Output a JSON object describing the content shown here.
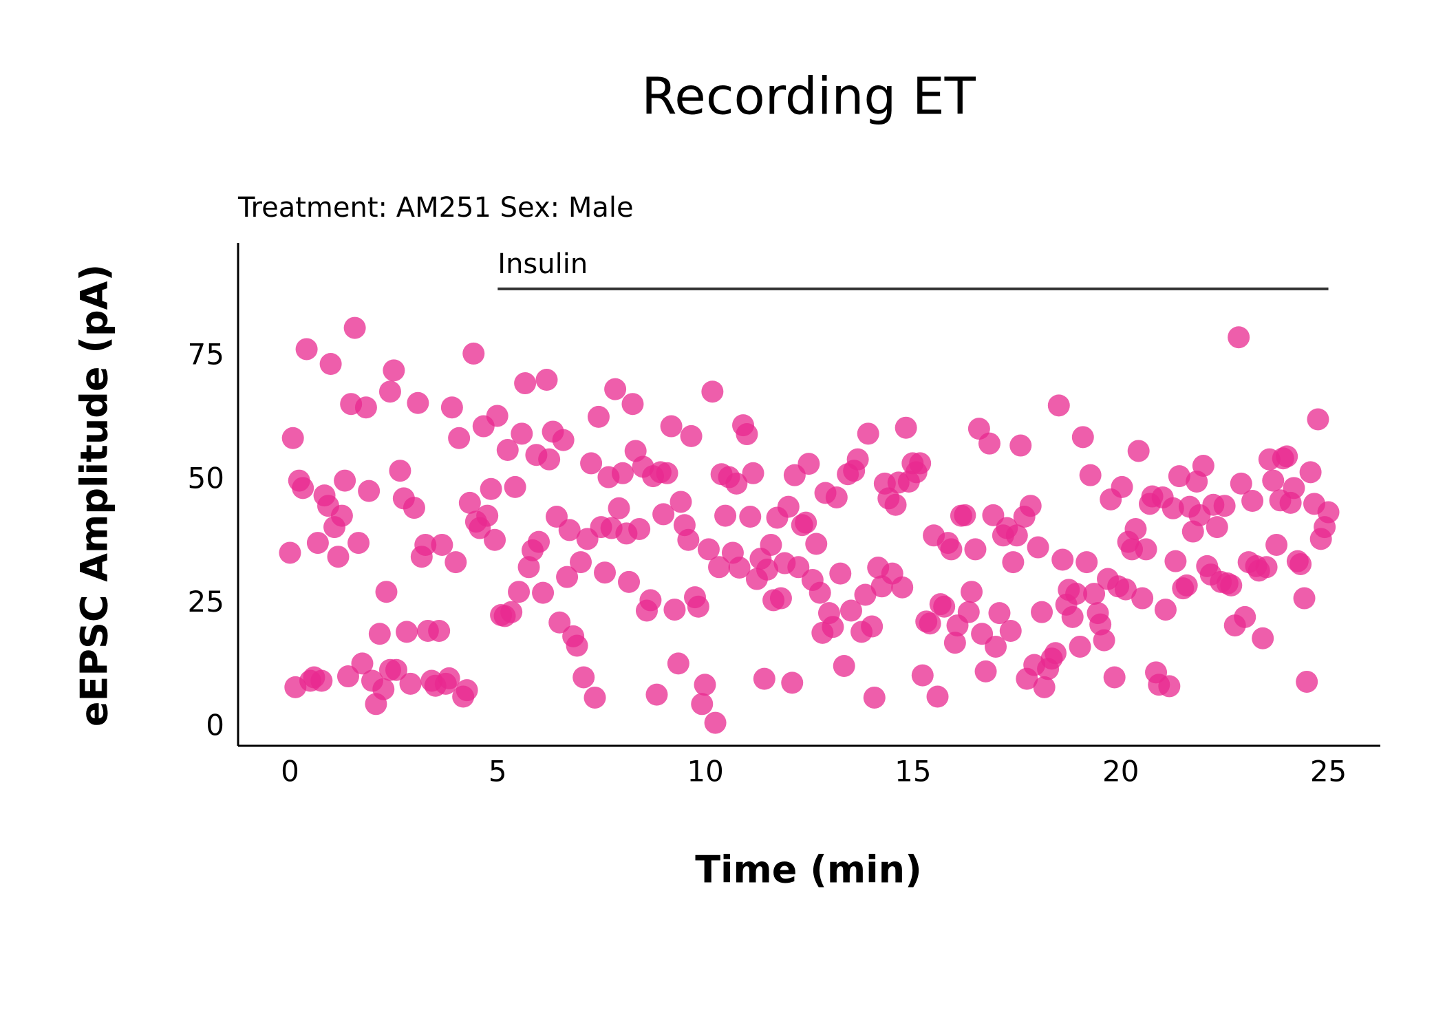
{
  "chart_data": {
    "type": "scatter",
    "title": "Recording ET",
    "subtitle": "Treatment: AM251  Sex: Male",
    "x_label": "Time (min)",
    "y_label": "eEPSC Amplitude (pA)",
    "xlim": [
      -1.25,
      26.25
    ],
    "ylim": [
      -3.75,
      98
    ],
    "xticks": [
      0,
      5,
      10,
      15,
      20,
      25
    ],
    "yticks": [
      0,
      25,
      50,
      75
    ],
    "grid": false,
    "annotations": [
      {
        "text": "Insulin",
        "x": [
          5,
          25
        ],
        "y": 88.7
      }
    ],
    "x": [
      0,
      0.07,
      0.13,
      0.22,
      0.31,
      0.4,
      0.49,
      0.58,
      0.67,
      0.76,
      0.83,
      0.92,
      0.98,
      1.07,
      1.16,
      1.25,
      1.32,
      1.4,
      1.47,
      1.56,
      1.65,
      1.74,
      1.83,
      1.9,
      1.98,
      2.07,
      2.16,
      2.25,
      2.32,
      2.41,
      2.5,
      2.56,
      2.41,
      2.65,
      2.74,
      2.81,
      2.9,
      2.99,
      3.08,
      3.17,
      3.26,
      3.32,
      3.41,
      3.5,
      3.59,
      3.66,
      3.75,
      3.83,
      3.9,
      3.99,
      4.07,
      4.17,
      4.26,
      4.33,
      4.42,
      4.48,
      4.57,
      4.66,
      4.75,
      4.84,
      4.93,
      4.99,
      5.08,
      5.17,
      5.24,
      5.33,
      5.42,
      5.51,
      5.58,
      5.66,
      5.75,
      5.84,
      5.93,
      5.99,
      6.09,
      6.18,
      6.24,
      6.33,
      6.42,
      6.49,
      6.58,
      6.67,
      6.73,
      6.82,
      6.91,
      7,
      7.07,
      7.16,
      7.25,
      7.34,
      7.43,
      7.49,
      7.58,
      7.67,
      7.74,
      7.83,
      7.92,
      8.01,
      8.1,
      8.16,
      8.25,
      8.32,
      8.41,
      8.5,
      8.59,
      8.68,
      8.74,
      8.83,
      8.92,
      8.99,
      9.08,
      9.18,
      9.26,
      9.35,
      9.41,
      9.5,
      9.59,
      9.66,
      9.75,
      9.83,
      9.92,
      9.99,
      10.08,
      10.17,
      10.24,
      10.33,
      10.39,
      10.48,
      10.57,
      10.66,
      10.75,
      10.82,
      10.91,
      11,
      11.08,
      11.15,
      11.24,
      11.33,
      11.42,
      11.49,
      11.58,
      11.64,
      11.73,
      11.82,
      11.91,
      12,
      12.09,
      12.15,
      12.24,
      12.33,
      12.42,
      12.49,
      12.58,
      12.67,
      12.76,
      12.82,
      12.89,
      12.98,
      13.07,
      13.16,
      13.25,
      13.34,
      13.43,
      13.51,
      13.58,
      13.67,
      13.76,
      13.85,
      13.92,
      14.01,
      14.07,
      14.16,
      14.25,
      14.32,
      14.41,
      14.5,
      14.58,
      14.65,
      14.74,
      14.83,
      14.9,
      14.99,
      15.08,
      15.17,
      15.23,
      15.32,
      15.41,
      15.5,
      15.59,
      15.66,
      15.75,
      15.84,
      15.92,
      16.01,
      16.07,
      16.16,
      16.25,
      16.34,
      16.41,
      16.5,
      16.59,
      16.66,
      16.75,
      16.84,
      16.93,
      16.99,
      17.08,
      17.17,
      17.26,
      17.35,
      17.41,
      17.5,
      17.59,
      17.68,
      17.74,
      17.83,
      17.92,
      18.01,
      18.1,
      18.16,
      18.25,
      18.34,
      18.43,
      18.51,
      18.6,
      18.69,
      18.75,
      18.84,
      18.93,
      19.02,
      19.09,
      19.18,
      19.27,
      19.36,
      19.45,
      19.51,
      19.6,
      19.69,
      19.76,
      19.85,
      19.94,
      20.03,
      20.12,
      20.18,
      20.27,
      20.36,
      20.43,
      20.52,
      20.61,
      20.7,
      20.76,
      20.85,
      20.92,
      21.01,
      21.08,
      21.17,
      21.26,
      21.32,
      21.41,
      21.5,
      21.59,
      21.66,
      21.74,
      21.83,
      21.9,
      21.99,
      22.08,
      22.17,
      22.23,
      22.32,
      22.41,
      22.5,
      22.57,
      22.66,
      22.75,
      22.84,
      22.9,
      22.99,
      23.08,
      23.17,
      23.26,
      23.33,
      23.42,
      23.51,
      23.58,
      23.67,
      23.75,
      23.84,
      23.91,
      24,
      24.09,
      24.17,
      24.26,
      24.33,
      24.42,
      24.48,
      24.57,
      24.66,
      24.75,
      24.82,
      24.91,
      25
    ],
    "series": [
      {
        "color": "#e8288f",
        "values": [
          35.3,
          58.5,
          8.1,
          49.9,
          48.4,
          76.5,
          9.4,
          10.1,
          37.3,
          9.4,
          46.9,
          44.8,
          73.5,
          40.5,
          34.5,
          42.8,
          49.9,
          10.3,
          65.4,
          80.8,
          37.3,
          12.9,
          64.7,
          47.8,
          9.4,
          4.7,
          18.9,
          7.7,
          27.4,
          11.6,
          72.2,
          11.6,
          67.9,
          51.9,
          46.3,
          19.3,
          8.8,
          44.4,
          65.6,
          34.5,
          36.9,
          19.5,
          9.4,
          8.4,
          19.5,
          36.9,
          8.8,
          9.9,
          64.7,
          33.4,
          58.5,
          6.2,
          7.5,
          45.4,
          75.6,
          41.6,
          40.3,
          60.9,
          42.8,
          48.2,
          37.9,
          63,
          22.7,
          22.5,
          56.1,
          23.3,
          48.6,
          27.4,
          59.4,
          69.6,
          32.4,
          35.8,
          55.1,
          37.5,
          27.2,
          70.3,
          54.2,
          59.8,
          42.6,
          21.2,
          58.1,
          30.4,
          39.9,
          18.4,
          16.5,
          33.4,
          10.1,
          38.1,
          53.4,
          6,
          62.8,
          40.5,
          31.3,
          50.6,
          40.3,
          68.4,
          44.3,
          51.4,
          39.2,
          29.4,
          65.4,
          55.9,
          40.1,
          52.7,
          23.6,
          25.7,
          50.8,
          6.6,
          51.6,
          43.1,
          51.4,
          60.9,
          23.8,
          12.9,
          45.6,
          40.9,
          37.9,
          58.9,
          26.3,
          24.4,
          4.7,
          8.6,
          36,
          67.9,
          0.9,
          32.4,
          51.2,
          42.8,
          50.6,
          35.3,
          49.3,
          32.3,
          61.1,
          59.3,
          42.6,
          51.4,
          30,
          34.1,
          9.8,
          31.9,
          36.9,
          25.7,
          42.4,
          26.1,
          33.2,
          44.6,
          9,
          51,
          32.4,
          40.9,
          41.4,
          53.3,
          29.8,
          37.1,
          27.2,
          19.1,
          47.4,
          23.1,
          20.3,
          46.5,
          31.1,
          12.4,
          51.2,
          23.6,
          51.9,
          54.2,
          19.3,
          26.8,
          59.4,
          20.4,
          6,
          32.3,
          28.5,
          49.3,
          46.3,
          31.1,
          45,
          49.5,
          28.3,
          60.6,
          49.7,
          53.4,
          51.6,
          53.4,
          10.5,
          21.4,
          21,
          38.8,
          6.2,
          24.9,
          24.4,
          37.3,
          36,
          17.1,
          20.6,
          42.8,
          42.9,
          23.3,
          27.4,
          36,
          60.4,
          18.9,
          11.3,
          57.4,
          42.9,
          16.3,
          23.1,
          38.8,
          40.3,
          19.5,
          33.4,
          38.8,
          57,
          42.6,
          9.8,
          44.8,
          12.6,
          36.4,
          23.3,
          8.1,
          11.8,
          13.9,
          15,
          65.1,
          33.9,
          24.8,
          27.8,
          22.3,
          27,
          16.3,
          58.7,
          33.4,
          51,
          27,
          23.1,
          20.8,
          17.6,
          30,
          46.1,
          10.1,
          28.5,
          48.6,
          27.9,
          37.5,
          36,
          40.1,
          55.9,
          26.1,
          36,
          45.2,
          46.7,
          11.1,
          8.6,
          46.5,
          23.8,
          8.3,
          44.3,
          33.6,
          50.8,
          28.1,
          28.7,
          44.6,
          39.6,
          49.7,
          42.9,
          52.9,
          32.6,
          30.9,
          45,
          40.5,
          29.4,
          44.8,
          29.1,
          28.7,
          20.6,
          78.9,
          49.3,
          22.3,
          33.4,
          45.8,
          32.6,
          31.7,
          18,
          32.4,
          54.2,
          49.9,
          36.9,
          45.9,
          54.4,
          54.8,
          45.4,
          48.4,
          33.6,
          33,
          26.1,
          9.2,
          51.6,
          45.2,
          62.3,
          38.1,
          40.5,
          43.5
        ]
      }
    ]
  }
}
